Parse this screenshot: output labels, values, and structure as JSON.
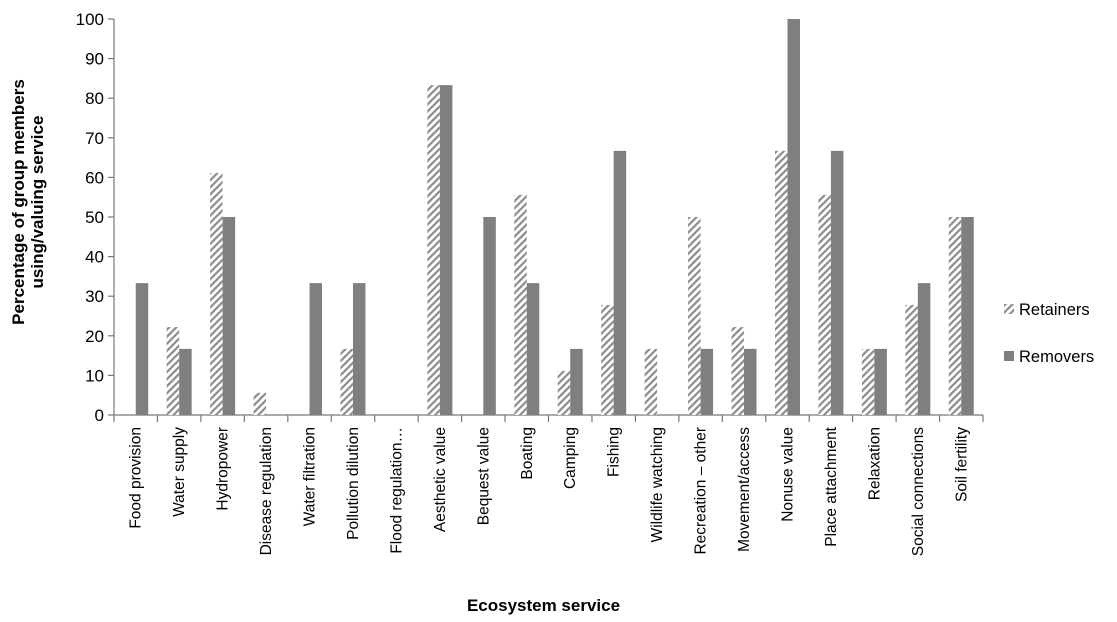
{
  "chart_data": {
    "type": "bar",
    "title": "",
    "xlabel": "Ecosystem service",
    "ylabel": "Percentage of group members using/valuing service",
    "ylabel_lines": [
      "Percentage of group members",
      "using/valuing service"
    ],
    "ylim": [
      0,
      100
    ],
    "yticks": [
      "0",
      "10",
      "20",
      "30",
      "40",
      "50",
      "60",
      "70",
      "80",
      "90",
      "100"
    ],
    "grid": false,
    "legend_position": "right",
    "categories": [
      "Food provision",
      "Water supply",
      "Hydropower",
      "Disease regulation",
      "Water filtration",
      "Pollution dilution",
      "Flood regulation…",
      "Aesthetic value",
      "Bequest value",
      "Boating",
      "Camping",
      "Fishing",
      "Wildlife watching",
      "Recreation – other",
      "Movement/access",
      "Nonuse value",
      "Place attachment",
      "Relaxation",
      "Social connections",
      "Soil fertility"
    ],
    "series": [
      {
        "name": "Retainers",
        "pattern": "hatched",
        "color": "#8c8c8c",
        "values": [
          0,
          22.2,
          61.1,
          5.6,
          0,
          16.7,
          0,
          83.3,
          0,
          55.6,
          11.1,
          27.8,
          16.7,
          50,
          22.2,
          66.7,
          55.6,
          16.7,
          27.8,
          50
        ]
      },
      {
        "name": "Removers",
        "pattern": "solid",
        "color": "#7f7f7f",
        "values": [
          33.3,
          16.7,
          50,
          0,
          33.3,
          33.3,
          0,
          83.3,
          50,
          33.3,
          16.7,
          66.7,
          0,
          16.7,
          16.7,
          100,
          66.7,
          16.7,
          33.3,
          50
        ]
      }
    ]
  }
}
